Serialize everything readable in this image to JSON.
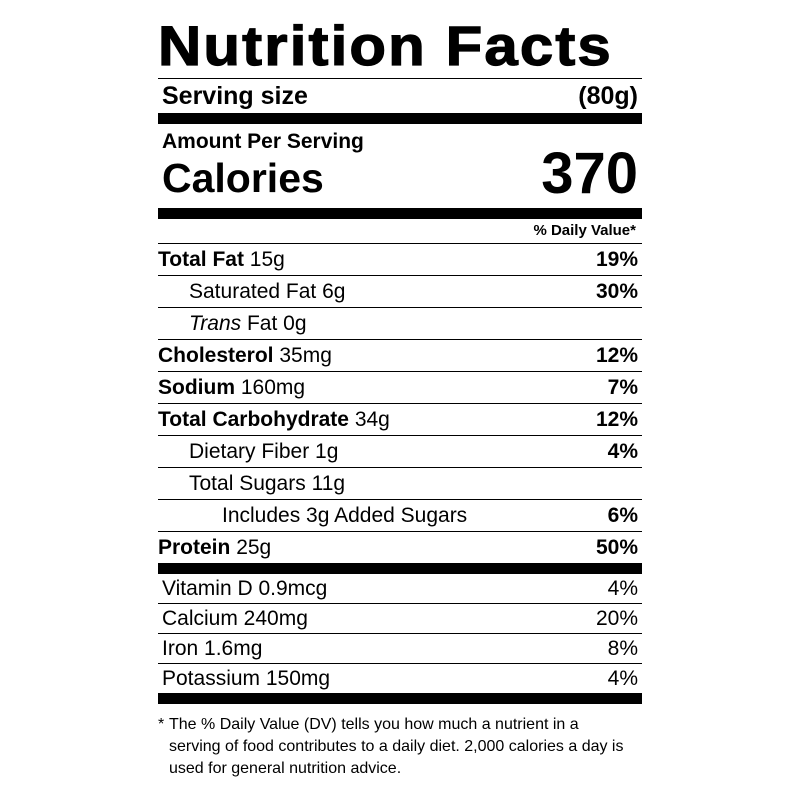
{
  "title": "Nutrition Facts",
  "serving": {
    "label": "Serving size",
    "value": "(80g)"
  },
  "amount_per_serving": "Amount Per Serving",
  "calories": {
    "label": "Calories",
    "value": "370"
  },
  "daily_value_header": "% Daily Value*",
  "nutrients": [
    {
      "bold_name": "Total Fat",
      "name": "",
      "italic_name": "",
      "rest": "",
      "amount": "15g",
      "dv": "19%"
    },
    {
      "bold_name": "",
      "name": "Saturated Fat",
      "italic_name": "",
      "rest": "",
      "amount": "6g",
      "dv": "30%"
    },
    {
      "bold_name": "",
      "name": "",
      "italic_name": "Trans",
      "rest": " Fat",
      "amount": "0g",
      "dv": ""
    },
    {
      "bold_name": "Cholesterol",
      "name": "",
      "italic_name": "",
      "rest": "",
      "amount": "35mg",
      "dv": "12%"
    },
    {
      "bold_name": "Sodium",
      "name": "",
      "italic_name": "",
      "rest": "",
      "amount": "160mg",
      "dv": "7%"
    },
    {
      "bold_name": "Total Carbohydrate",
      "name": "",
      "italic_name": "",
      "rest": "",
      "amount": "34g",
      "dv": "12%"
    },
    {
      "bold_name": "",
      "name": "Dietary Fiber",
      "italic_name": "",
      "rest": "",
      "amount": "1g",
      "dv": "4%"
    },
    {
      "bold_name": "",
      "name": "Total Sugars",
      "italic_name": "",
      "rest": "",
      "amount": "11g",
      "dv": ""
    },
    {
      "bold_name": "",
      "name": "Includes 3g Added Sugars",
      "italic_name": "",
      "rest": "",
      "amount": "",
      "dv": "6%"
    },
    {
      "bold_name": "Protein",
      "name": "",
      "italic_name": "",
      "rest": "",
      "amount": "25g",
      "dv": "50%"
    }
  ],
  "vitamins": [
    {
      "name": "Vitamin D 0.9mcg",
      "dv": "4%"
    },
    {
      "name": "Calcium 240mg",
      "dv": "20%"
    },
    {
      "name": "Iron 1.6mg",
      "dv": "8%"
    },
    {
      "name": "Potassium 150mg",
      "dv": "4%"
    }
  ],
  "footnote": {
    "star": "*",
    "text": "The % Daily Value (DV) tells you how much a nutrient in a serving of food contributes to a daily diet. 2,000 calories a day is used for general nutrition advice."
  }
}
